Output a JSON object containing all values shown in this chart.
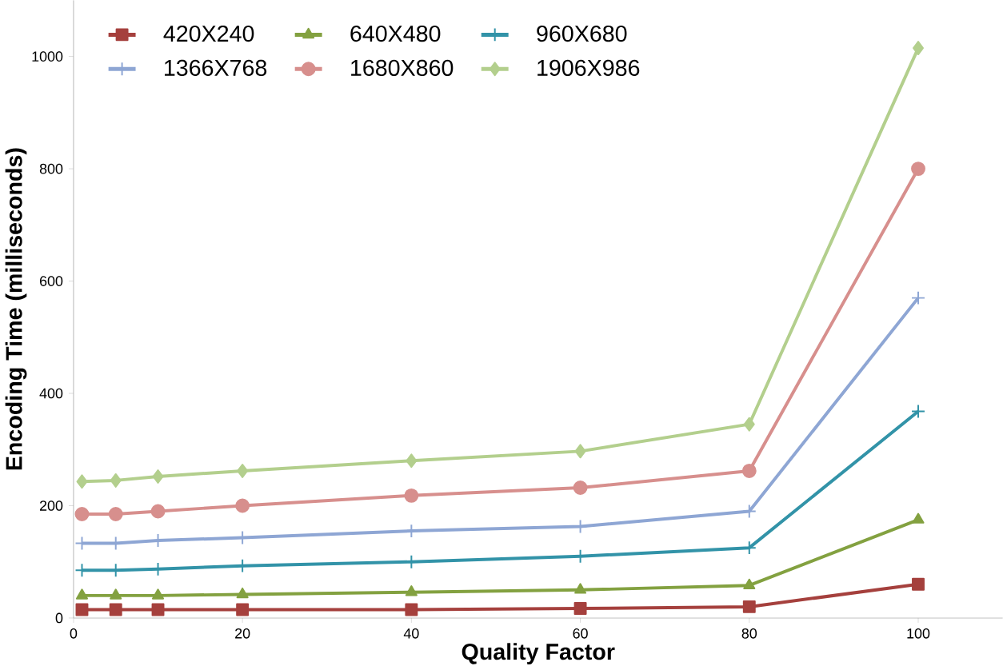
{
  "chart_data": {
    "type": "line",
    "xlabel": "Quality Factor",
    "ylabel": "Encoding Time (milliseconds)",
    "x": [
      1,
      5,
      10,
      20,
      40,
      60,
      80,
      100
    ],
    "xlim": [
      0,
      110
    ],
    "xticks": [
      0,
      20,
      40,
      60,
      80,
      100
    ],
    "ylim": [
      0,
      1100
    ],
    "yticks": [
      0,
      200,
      400,
      600,
      800,
      1000
    ],
    "grid": false,
    "legend": "top left",
    "series": [
      {
        "name": "420X240",
        "color": "#a5403d",
        "marker": "square",
        "values": [
          15,
          15,
          15,
          15,
          15,
          17,
          20,
          60
        ]
      },
      {
        "name": "640X480",
        "color": "#83a140",
        "marker": "triangle",
        "values": [
          40,
          40,
          40,
          42,
          46,
          50,
          58,
          175
        ]
      },
      {
        "name": "960X680",
        "color": "#3293a8",
        "marker": "cross",
        "values": [
          85,
          85,
          87,
          93,
          100,
          110,
          125,
          368
        ]
      },
      {
        "name": "1366X768",
        "color": "#8ea6d4",
        "marker": "cross",
        "values": [
          133,
          133,
          138,
          143,
          155,
          163,
          190,
          570
        ]
      },
      {
        "name": "1680X860",
        "color": "#d78f8d",
        "marker": "circle",
        "values": [
          185,
          185,
          190,
          200,
          218,
          232,
          262,
          800
        ]
      },
      {
        "name": "1906X986",
        "color": "#b3cf8d",
        "marker": "diamond",
        "values": [
          243,
          245,
          252,
          262,
          280,
          297,
          345,
          1015
        ]
      }
    ]
  }
}
